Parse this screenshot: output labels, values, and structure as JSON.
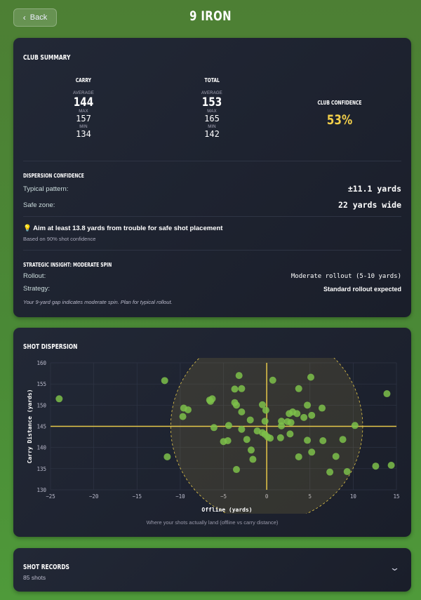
{
  "header": {
    "back_label": "Back",
    "title": "9 IRON"
  },
  "summary": {
    "heading": "CLUB SUMMARY",
    "carry": {
      "label": "CARRY",
      "average_label": "AVERAGE",
      "average": "144",
      "max_label": "MAX",
      "max": "157",
      "min_label": "MIN",
      "min": "134"
    },
    "total": {
      "label": "TOTAL",
      "average_label": "AVERAGE",
      "average": "153",
      "max_label": "MAX",
      "max": "165",
      "min_label": "MIN",
      "min": "142"
    },
    "confidence": {
      "label": "CLUB CONFIDENCE",
      "value": "53%",
      "color": "#f2cf4a"
    },
    "dispersion": {
      "heading": "DISPERSION CONFIDENCE",
      "pattern_label": "Typical pattern:",
      "pattern_value": "±11.1 yards",
      "safe_label": "Safe zone:",
      "safe_value": "22 yards wide"
    },
    "tip": {
      "icon": "lightbulb-icon",
      "text": "Aim at least 13.8 yards from trouble for safe shot placement",
      "sub": "Based on 90% shot confidence"
    },
    "insight": {
      "heading": "STRATEGIC INSIGHT: MODERATE SPIN",
      "rollout_label": "Rollout:",
      "rollout_value": "Moderate rollout (5-10 yards)",
      "strategy_label": "Strategy:",
      "strategy_value": "Standard rollout expected",
      "note": "Your 9-yard gap indicates moderate spin. Plan for typical rollout."
    }
  },
  "dispersion_card": {
    "heading": "SHOT DISPERSION",
    "caption": "Where your shots actually land (offline vs carry distance)"
  },
  "chart_data": {
    "type": "scatter",
    "xlabel": "Offline (yards)",
    "ylabel": "Carry Distance (yards)",
    "xlim": [
      -25,
      15
    ],
    "ylim": [
      130,
      160
    ],
    "xticks": [
      -25,
      -20,
      -15,
      -10,
      -5,
      0,
      5,
      10,
      15
    ],
    "yticks": [
      130,
      135,
      140,
      145,
      150,
      155,
      160
    ],
    "grid": true,
    "reference_lines": {
      "x": 0,
      "y": 145,
      "color": "#e6c84a"
    },
    "confidence_zone": {
      "center": [
        0,
        145
      ],
      "radius_x": 11.1,
      "color": "#e6c84a"
    },
    "point_color": "#7cc04a",
    "points": [
      [
        -24.0,
        151.5
      ],
      [
        -11.8,
        155.8
      ],
      [
        -11.5,
        137.8
      ],
      [
        -9.6,
        149.3
      ],
      [
        -9.1,
        148.9
      ],
      [
        -9.7,
        147.3
      ],
      [
        -6.6,
        151.2
      ],
      [
        -6.3,
        151.5
      ],
      [
        -6.5,
        150.9
      ],
      [
        -6.1,
        144.7
      ],
      [
        -5.0,
        141.4
      ],
      [
        -4.5,
        141.6
      ],
      [
        -4.4,
        145.2
      ],
      [
        -3.7,
        153.8
      ],
      [
        -3.2,
        157.0
      ],
      [
        -2.9,
        153.9
      ],
      [
        -3.7,
        150.6
      ],
      [
        -3.5,
        150.0
      ],
      [
        -2.9,
        148.4
      ],
      [
        -2.9,
        144.3
      ],
      [
        -3.5,
        134.8
      ],
      [
        -2.3,
        141.9
      ],
      [
        -1.9,
        146.5
      ],
      [
        -1.8,
        139.4
      ],
      [
        -1.6,
        137.2
      ],
      [
        -1.1,
        143.9
      ],
      [
        -0.5,
        150.1
      ],
      [
        -0.5,
        143.5
      ],
      [
        -0.2,
        143.1
      ],
      [
        -0.1,
        148.8
      ],
      [
        -0.2,
        146.2
      ],
      [
        0.1,
        142.5
      ],
      [
        0.4,
        142.2
      ],
      [
        0.7,
        155.9
      ],
      [
        1.6,
        142.3
      ],
      [
        1.7,
        145.1
      ],
      [
        1.7,
        146.2
      ],
      [
        2.4,
        146.1
      ],
      [
        2.8,
        145.9
      ],
      [
        2.6,
        148.0
      ],
      [
        3.0,
        148.4
      ],
      [
        3.5,
        148.0
      ],
      [
        2.7,
        143.2
      ],
      [
        3.7,
        153.9
      ],
      [
        3.7,
        137.8
      ],
      [
        4.3,
        147.1
      ],
      [
        4.7,
        150.0
      ],
      [
        4.7,
        141.7
      ],
      [
        5.1,
        156.6
      ],
      [
        5.2,
        147.6
      ],
      [
        5.2,
        138.9
      ],
      [
        6.4,
        149.3
      ],
      [
        6.5,
        141.6
      ],
      [
        7.3,
        134.2
      ],
      [
        8.0,
        137.9
      ],
      [
        8.8,
        141.9
      ],
      [
        9.3,
        134.3
      ],
      [
        10.2,
        145.2
      ],
      [
        12.6,
        135.6
      ],
      [
        13.9,
        152.7
      ],
      [
        14.4,
        135.8
      ]
    ]
  },
  "records": {
    "heading": "SHOT RECORDS",
    "count": "85 shots"
  }
}
